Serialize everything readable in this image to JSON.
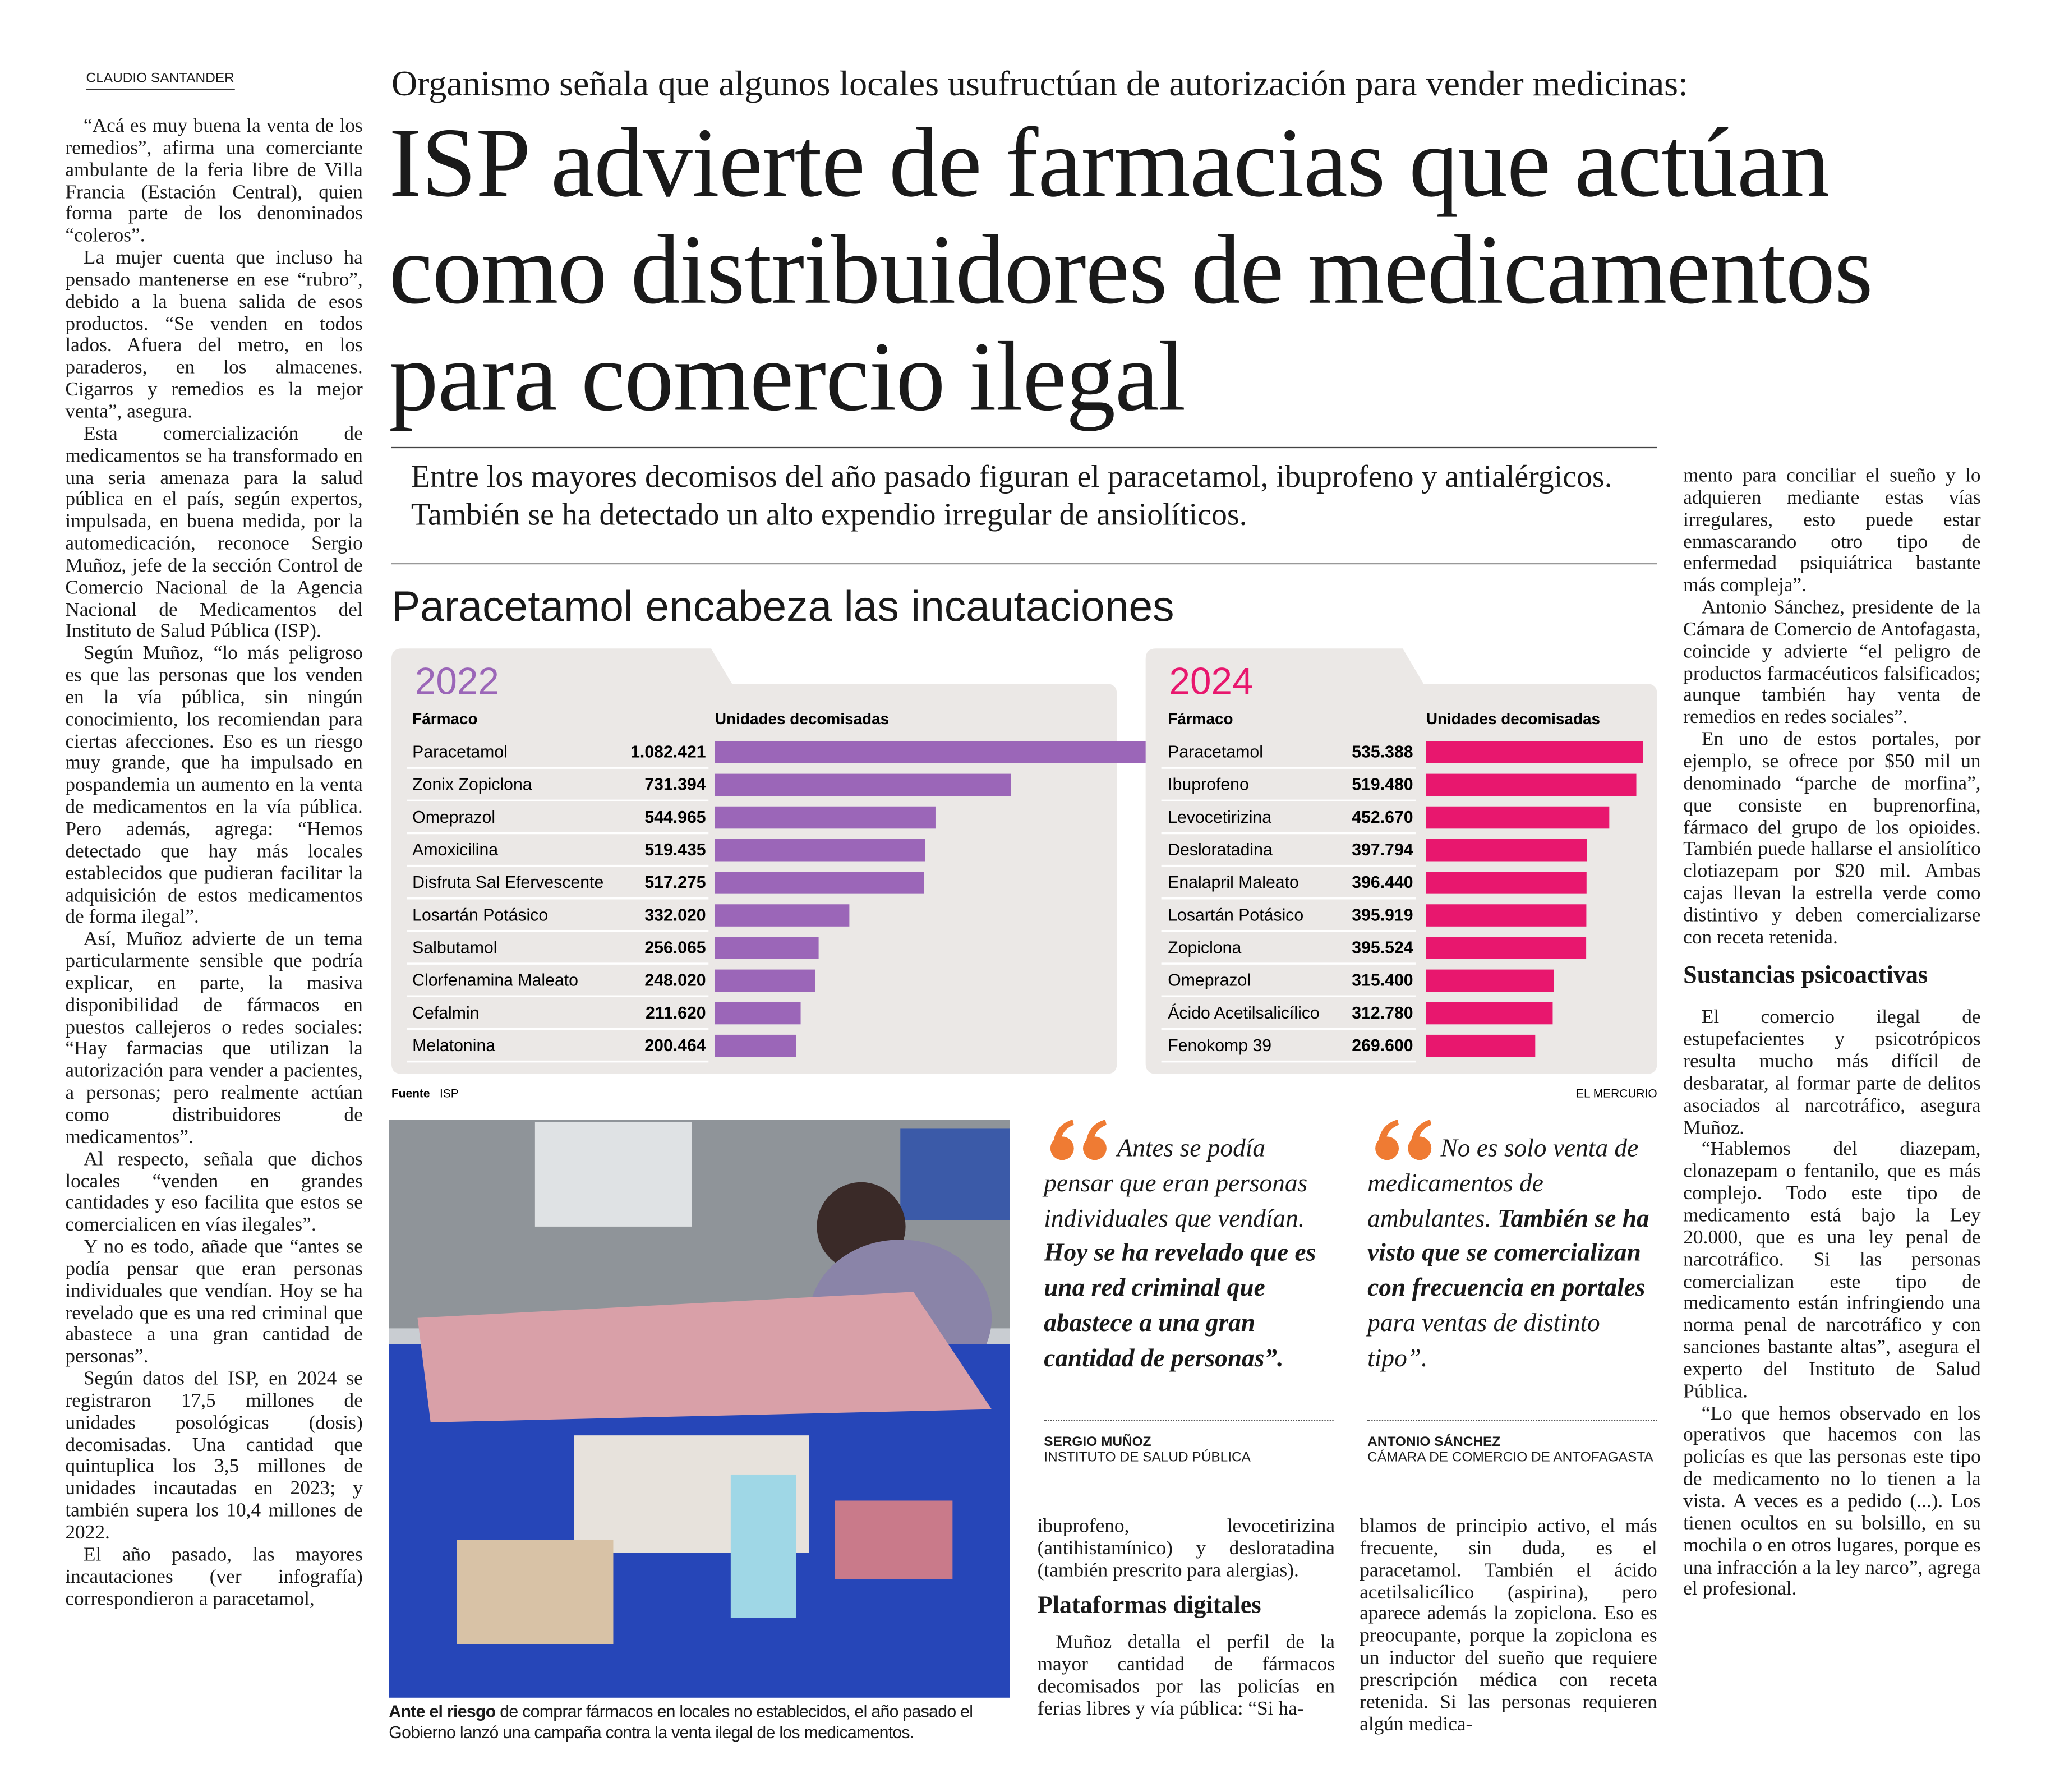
{
  "byline": "CLAUDIO SANTANDER",
  "kicker": "Organismo señala que algunos locales usufructúan de autorización para vender medicinas:",
  "headline": [
    "ISP advierte de farmacias que actúan",
    "como distribuidores de medicamentos",
    "para comercio ilegal"
  ],
  "deck": "Entre los mayores decomisos del año pasado figuran el paracetamol, ibuprofeno y antialérgicos. También se ha detectado un alto expendio irregular de ansiolíticos.",
  "body_left": [
    "“Acá es muy buena la venta de los remedios”, afirma una comerciante ambulante de la feria libre de Villa Francia (Estación Central), quien forma parte de los denominados “coleros”.",
    "La mujer cuenta que incluso ha pensado mantenerse en ese “rubro”, debido a la buena salida de esos productos. “Se venden en todos lados. Afuera del metro, en los paraderos, en los almacenes. Cigarros y remedios es la mejor venta”, asegura.",
    "Esta comercialización de medicamentos se ha transformado en una seria amenaza para la salud pública en el país, según expertos, impulsada, en buena medida, por la automedicación, reconoce Sergio Muñoz, jefe de la sección Control de Comercio Nacional de la Agencia Nacional de Medicamentos del Instituto de Salud Pública (ISP).",
    "Según Muñoz, “lo más peligroso es que las personas que los venden en la vía pública, sin ningún conocimiento, los recomiendan para ciertas afecciones. Eso es un riesgo muy grande, que ha impulsado en pospandemia un aumento en la venta de medicamentos en la vía pública. Pero además, agrega: “Hemos detectado que hay más locales establecidos que pudieran facilitar la adquisición de estos medicamentos de forma ilegal”.",
    "Así, Muñoz advierte de un tema particularmente sensible que podría explicar, en parte, la masiva disponibilidad de fármacos en puestos callejeros o redes sociales: “Hay farmacias que utilizan la autorización para vender a pacientes, a personas; pero realmente actúan como distribuidores de medicamentos”.",
    "Al respecto, señala que dichos locales “venden en grandes cantidades y eso facilita que estos se comercialicen en vías ilegales”.",
    "Y no es todo, añade que “antes se podía pensar que eran personas individuales que vendían. Hoy se ha revelado que es una red criminal que abastece a una gran cantidad de personas”.",
    "Según datos del ISP, en 2024 se registraron 17,5 millones de unidades posológicas (dosis) decomisadas. Una cantidad que quintuplica los 3,5 millones de unidades incautadas en 2023; y también supera los 10,4 millones de 2022.",
    "El año pasado, las mayores incautaciones (ver infografía) correspondieron a paracetamol,"
  ],
  "infographic": {
    "title": "Paracetamol encabeza las incautaciones",
    "panels": [
      {
        "year": "2022",
        "color": "#9b66b8",
        "header": [
          "Fármaco",
          "Unidades decomisadas"
        ],
        "rows": [
          {
            "name": "Paracetamol",
            "value": 1082421,
            "value_label": "1.082.421"
          },
          {
            "name": "Zonix Zopiclona",
            "value": 731394,
            "value_label": "731.394"
          },
          {
            "name": "Omeprazol",
            "value": 544965,
            "value_label": "544.965"
          },
          {
            "name": "Amoxicilina",
            "value": 519435,
            "value_label": "519.435"
          },
          {
            "name": "Disfruta Sal Efervescente",
            "value": 517275,
            "value_label": "517.275"
          },
          {
            "name": "Losartán Potásico",
            "value": 332020,
            "value_label": "332.020"
          },
          {
            "name": "Salbutamol",
            "value": 256065,
            "value_label": "256.065"
          },
          {
            "name": "Clorfenamina Maleato",
            "value": 248020,
            "value_label": "248.020"
          },
          {
            "name": "Cefalmin",
            "value": 211620,
            "value_label": "211.620"
          },
          {
            "name": "Melatonina",
            "value": 200464,
            "value_label": "200.464"
          }
        ]
      },
      {
        "year": "2024",
        "color": "#e8176e",
        "header": [
          "Fármaco",
          "Unidades decomisadas"
        ],
        "rows": [
          {
            "name": "Paracetamol",
            "value": 535388,
            "value_label": "535.388"
          },
          {
            "name": "Ibuprofeno",
            "value": 519480,
            "value_label": "519.480"
          },
          {
            "name": "Levocetirizina",
            "value": 452670,
            "value_label": "452.670"
          },
          {
            "name": "Desloratadina",
            "value": 397794,
            "value_label": "397.794"
          },
          {
            "name": "Enalapril Maleato",
            "value": 396440,
            "value_label": "396.440"
          },
          {
            "name": "Losartán Potásico",
            "value": 395919,
            "value_label": "395.919"
          },
          {
            "name": "Zopiclona",
            "value": 395524,
            "value_label": "395.524"
          },
          {
            "name": "Omeprazol",
            "value": 315400,
            "value_label": "315.400"
          },
          {
            "name": "Ácido Acetilsalicílico",
            "value": 312780,
            "value_label": "312.780"
          },
          {
            "name": "Fenokomp 39",
            "value": 269600,
            "value_label": "269.600"
          }
        ]
      }
    ],
    "source_label": "Fuente",
    "source": "ISP",
    "credit": "EL MERCURIO"
  },
  "photo": {
    "caption_lead": "Ante el riesgo",
    "caption": "de comprar fármacos en locales no establecidos, el año pasado el Gobierno lanzó una campaña contra la venta ilegal de los medicamentos."
  },
  "quotes": [
    {
      "segments": [
        {
          "text": "Antes se podía pensar que eran personas individuales que vendían. ",
          "style": "italic"
        },
        {
          "text": "Hoy se ha revelado que es una red criminal que abastece a una gran cantidad de personas”.",
          "style": "bold"
        }
      ],
      "name": "SERGIO MUÑOZ",
      "role": "INSTITUTO DE SALUD PÚBLICA"
    },
    {
      "segments": [
        {
          "text": "No es solo venta de medicamentos de ambulantes. ",
          "style": "italic"
        },
        {
          "text": "También se ha visto que se comercializan con frecuencia en portales",
          "style": "bold"
        },
        {
          "text": " para ventas de distinto tipo”.",
          "style": "italic"
        }
      ],
      "name": "ANTONIO SÁNCHEZ",
      "role": "CÁMARA DE COMERCIO DE ANTOFAGASTA"
    }
  ],
  "body_mid_1_top": [
    "ibuprofeno, levocetirizina (antihistamínico) y desloratadina (también prescrito para alergias)."
  ],
  "subhead_1": "Plataformas digitales",
  "body_mid_1": [
    "Muñoz detalla el perfil de la mayor cantidad de fármacos decomisados por las policías en ferias libres y vía pública: “Si ha-"
  ],
  "body_mid_2": [
    "blamos de principio activo, el más frecuente, sin duda, es el paracetamol. También el ácido acetilsalicílico (aspirina), pero aparece además la zopiclona. Eso es preocupante, porque la zopiclona es un inductor del sueño que requiere prescripción médica con receta retenida. Si las personas requieren algún medica-"
  ],
  "body_right_top": [
    "mento para conciliar el sueño y lo adquieren mediante estas vías irregulares, esto puede estar enmascarando otro tipo de enfermedad psiquiátrica bastante más compleja”.",
    "Antonio Sánchez, presidente de la Cámara de Comercio de Antofagasta, coincide y advierte “el peligro de productos farmacéuticos falsificados; aunque también hay venta de remedios en redes sociales”.",
    "En uno de estos portales, por ejemplo, se ofrece por $50 mil un denominado “parche de morfina”, que consiste en buprenorfina, fármaco del grupo de los opioides. También puede hallarse el ansiolítico clotiazepam por $20 mil. Ambas cajas llevan la estrella verde como distintivo y deben comercializarse con receta retenida."
  ],
  "subhead_2": "Sustancias psicoactivas",
  "body_right": [
    "El comercio ilegal de estupefacientes y psicotrópicos resulta mucho más difícil de desbaratar, al formar parte de delitos asociados al narcotráfico, asegura Muñoz.",
    "“Hablemos del diazepam, clonazepam o fentanilo, que es más complejo. Todo este tipo de medicamento está bajo la Ley 20.000, que es una ley penal de narcotráfico. Si las personas comercializan este tipo de medicamento están infringiendo una norma penal de narcotráfico y con sanciones bastante altas”, asegura el experto del Instituto de Salud Pública.",
    "“Lo que hemos observado en los operativos que hacemos con las policías es que las personas este tipo de medicamento no lo tienen a la vista. A veces es a pedido (...). Los tienen ocultos en su bolsillo, en su mochila o en otros lugares, porque es una infracción a la ley narco”, agrega el profesional."
  ]
}
